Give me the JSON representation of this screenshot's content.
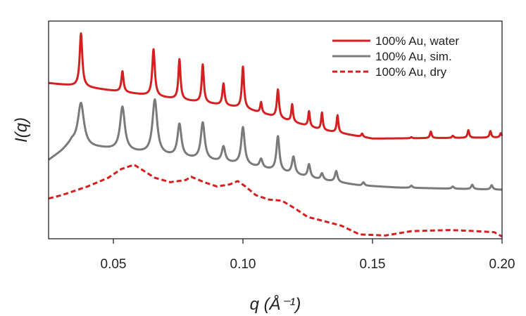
{
  "chart_data": {
    "type": "line",
    "title": "",
    "xlabel": "q (Å⁻¹)",
    "ylabel": "I(q)",
    "xlim": [
      0.025,
      0.2
    ],
    "ylim": [
      0,
      1
    ],
    "xticks": [
      0.05,
      0.1,
      0.15,
      0.2
    ],
    "xtick_labels": [
      "0.05",
      "0.10",
      "0.15",
      "0.20"
    ],
    "y_tick_labels_shown": false,
    "grid": false,
    "legend_position": "top-right",
    "series": [
      {
        "name": "100% Au, water",
        "color": "#d42020",
        "style": "solid",
        "baseline": [
          [
            0.025,
            0.715
          ],
          [
            0.04,
            0.695
          ],
          [
            0.1,
            0.6
          ],
          [
            0.13,
            0.5
          ],
          [
            0.15,
            0.46
          ],
          [
            0.2,
            0.465
          ]
        ],
        "peaks": [
          [
            0.0375,
            0.245,
            0.0006
          ],
          [
            0.0535,
            0.095,
            0.0005
          ],
          [
            0.0655,
            0.215,
            0.0006
          ],
          [
            0.0755,
            0.185,
            0.0005
          ],
          [
            0.0845,
            0.175,
            0.0005
          ],
          [
            0.0925,
            0.1,
            0.0005
          ],
          [
            0.1,
            0.19,
            0.0005
          ],
          [
            0.107,
            0.05,
            0.0004
          ],
          [
            0.1135,
            0.13,
            0.0005
          ],
          [
            0.119,
            0.08,
            0.0004
          ],
          [
            0.1255,
            0.07,
            0.0004
          ],
          [
            0.1305,
            0.08,
            0.0004
          ],
          [
            0.1365,
            0.08,
            0.0004
          ],
          [
            0.146,
            0.015,
            0.0004
          ],
          [
            0.165,
            0.005,
            0.0004
          ],
          [
            0.1725,
            0.03,
            0.0004
          ],
          [
            0.181,
            0.01,
            0.0004
          ],
          [
            0.187,
            0.035,
            0.0004
          ],
          [
            0.1955,
            0.03,
            0.0004
          ],
          [
            0.1995,
            0.02,
            0.0004
          ]
        ]
      },
      {
        "name": "100% Au, sim.",
        "color": "#7a7a7a",
        "style": "solid",
        "baseline": [
          [
            0.025,
            0.36
          ],
          [
            0.03,
            0.4
          ],
          [
            0.034,
            0.44
          ],
          [
            0.038,
            0.42
          ],
          [
            0.045,
            0.415
          ],
          [
            0.1,
            0.34
          ],
          [
            0.13,
            0.27
          ],
          [
            0.145,
            0.245
          ],
          [
            0.16,
            0.235
          ],
          [
            0.2,
            0.225
          ]
        ],
        "peaks": [
          [
            0.0375,
            0.2,
            0.0014
          ],
          [
            0.0535,
            0.2,
            0.0011
          ],
          [
            0.066,
            0.25,
            0.0011
          ],
          [
            0.0755,
            0.15,
            0.0009
          ],
          [
            0.0845,
            0.17,
            0.0009
          ],
          [
            0.0925,
            0.07,
            0.0008
          ],
          [
            0.1,
            0.17,
            0.0008
          ],
          [
            0.107,
            0.04,
            0.0007
          ],
          [
            0.1135,
            0.16,
            0.0007
          ],
          [
            0.1195,
            0.08,
            0.0007
          ],
          [
            0.1255,
            0.06,
            0.0006
          ],
          [
            0.1305,
            0.03,
            0.0006
          ],
          [
            0.136,
            0.05,
            0.0006
          ],
          [
            0.1465,
            0.015,
            0.0005
          ],
          [
            0.165,
            0.01,
            0.0005
          ],
          [
            0.181,
            0.01,
            0.0005
          ],
          [
            0.1885,
            0.02,
            0.0005
          ],
          [
            0.196,
            0.02,
            0.0005
          ]
        ]
      },
      {
        "name": "100% Au, dry",
        "color": "#d42020",
        "style": "dashed",
        "baseline": [
          [
            0.025,
            0.185
          ],
          [
            0.03,
            0.2
          ],
          [
            0.04,
            0.24
          ],
          [
            0.048,
            0.28
          ],
          [
            0.053,
            0.32
          ],
          [
            0.058,
            0.34
          ],
          [
            0.066,
            0.28
          ],
          [
            0.072,
            0.26
          ],
          [
            0.078,
            0.27
          ],
          [
            0.08,
            0.285
          ],
          [
            0.085,
            0.26
          ],
          [
            0.09,
            0.24
          ],
          [
            0.095,
            0.25
          ],
          [
            0.098,
            0.265
          ],
          [
            0.101,
            0.24
          ],
          [
            0.105,
            0.2
          ],
          [
            0.11,
            0.18
          ],
          [
            0.115,
            0.175
          ],
          [
            0.12,
            0.14
          ],
          [
            0.125,
            0.1
          ],
          [
            0.13,
            0.085
          ],
          [
            0.138,
            0.06
          ],
          [
            0.145,
            0.02
          ],
          [
            0.155,
            0.015
          ],
          [
            0.165,
            0.035
          ],
          [
            0.18,
            0.04
          ],
          [
            0.19,
            0.035
          ],
          [
            0.197,
            0.03
          ],
          [
            0.2,
            0.01
          ]
        ],
        "peaks": []
      }
    ]
  }
}
